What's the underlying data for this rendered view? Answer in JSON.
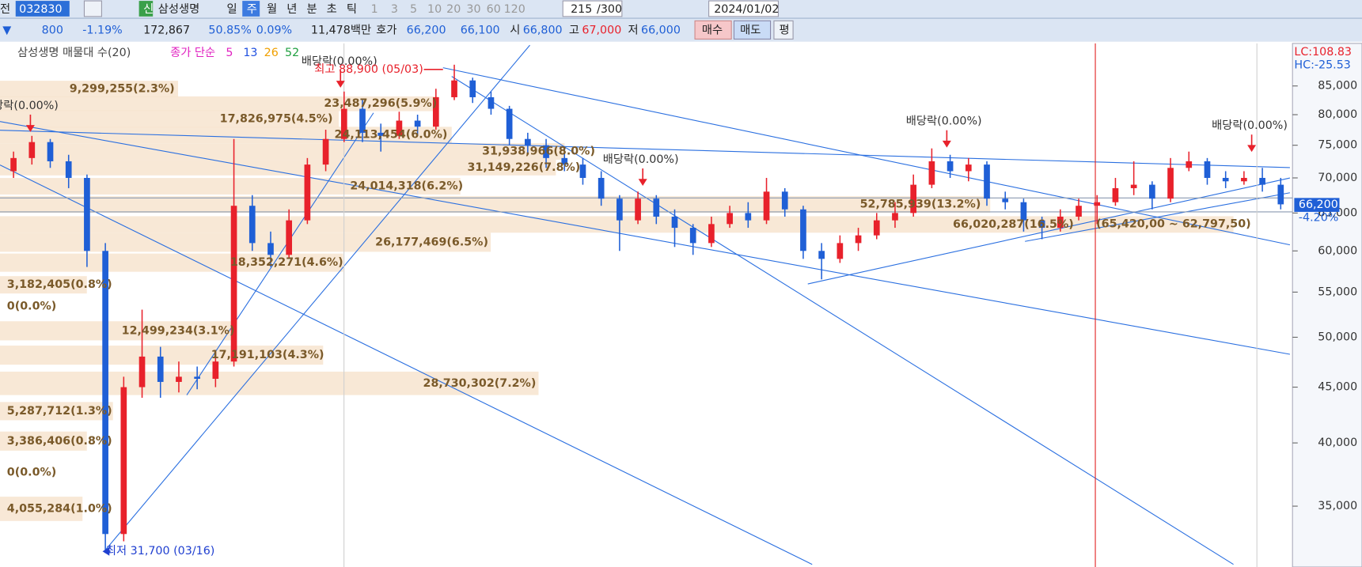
{
  "toolbar": {
    "row1": [
      "전",
      "032830",
      "신",
      "삼성생명",
      "일",
      "주",
      "월",
      "년",
      "분",
      "초",
      "틱",
      "1",
      "3",
      "5",
      "10",
      "20",
      "30",
      "60",
      "120",
      "215",
      "/300",
      "2024/01/02"
    ],
    "row2": [
      "▼",
      "800",
      "-1.19%",
      "172,867",
      "50.85%",
      "0.09%",
      "11,478백만",
      "호가",
      "66,200",
      "66,100",
      "시",
      "66,800",
      "고",
      "67,000",
      "저",
      "66,000",
      "매수",
      "매도",
      "평"
    ]
  },
  "legend": {
    "profile": "삼성생명 매물대 수(20)",
    "ma": "종가 단순",
    "periods": [
      "5",
      "13",
      "26",
      "52"
    ]
  },
  "status": {
    "lc": "LC:108.83",
    "hc": "HC:-25.53",
    "price": "66,200",
    "change": "-4.20%"
  },
  "profile": [
    "9,299,255(2.3%)",
    "23,487,296(5.9%)",
    "17,826,975(4.5%)",
    "24,113,454(6.0%)",
    "31,938,966(8.0%)",
    "31,149,226(7.8%)",
    "24,014,318(6.2%)",
    "52,785,939(13.2%)",
    "66,020,287(16.5%)",
    "26,177,469(6.5%)",
    "18,352,271(4.6%)",
    "3,182,405(0.8%)",
    "0(0.0%)",
    "12,499,234(3.1%)",
    "17,191,103(4.3%)",
    "28,730,302(7.2%)",
    "5,287,712(1.3%)",
    "3,386,406(0.8%)",
    "0(0.0%)",
    "4,055,284(1.0%)"
  ],
  "profile_range": "(65,420,00 ~ 62,797,50)",
  "annotations": {
    "dividend": "배당락(0.00%)",
    "high": "최고 88,900 (05/03)",
    "low": "최저 31,700 (03/16)"
  },
  "chart_data": {
    "type": "candlestick",
    "log": true,
    "ylim": [
      30950,
      92650
    ],
    "yticks": [
      {
        "value": 85000,
        "label": "85,000"
      },
      {
        "value": 80000,
        "label": "80,000"
      },
      {
        "value": 75000,
        "label": "75,000"
      },
      {
        "value": 70000,
        "label": "70,000"
      },
      {
        "value": 65000,
        "label": "65,000"
      },
      {
        "value": 60000,
        "label": "60,000"
      },
      {
        "value": 55000,
        "label": "55,000"
      },
      {
        "value": 50000,
        "label": "50,000"
      },
      {
        "value": 45000,
        "label": "45,000"
      },
      {
        "value": 40000,
        "label": "40,000"
      },
      {
        "value": 35000,
        "label": "35,000"
      }
    ],
    "up_color": "#e8212b",
    "down_color": "#1f5fd6",
    "ohlc": [
      [
        71000,
        74000,
        70000,
        73000
      ],
      [
        73000,
        76500,
        72000,
        75500
      ],
      [
        75500,
        76000,
        71500,
        72500
      ],
      [
        72500,
        73500,
        68500,
        70000
      ],
      [
        70000,
        70500,
        58000,
        60000
      ],
      [
        60000,
        61000,
        31700,
        33000
      ],
      [
        33000,
        46000,
        32500,
        45000
      ],
      [
        45000,
        53000,
        44000,
        48000
      ],
      [
        48000,
        49000,
        44000,
        45500
      ],
      [
        45500,
        47500,
        44500,
        46000
      ],
      [
        46000,
        47000,
        44800,
        45800
      ],
      [
        45800,
        48500,
        45000,
        47500
      ],
      [
        47500,
        76000,
        47000,
        66000
      ],
      [
        66000,
        67500,
        60000,
        61000
      ],
      [
        61000,
        62500,
        58000,
        59500
      ],
      [
        59500,
        65500,
        59000,
        64000
      ],
      [
        64000,
        73000,
        63500,
        72000
      ],
      [
        72000,
        77500,
        71000,
        76000
      ],
      [
        76000,
        84000,
        75500,
        81000
      ],
      [
        81000,
        82500,
        75500,
        77000
      ],
      [
        77000,
        78500,
        74000,
        76500
      ],
      [
        76500,
        80500,
        76000,
        79000
      ],
      [
        79000,
        80000,
        76500,
        78000
      ],
      [
        78000,
        84500,
        77500,
        83000
      ],
      [
        83000,
        88900,
        82500,
        86000
      ],
      [
        86000,
        86500,
        82000,
        83000
      ],
      [
        83000,
        84000,
        80000,
        81000
      ],
      [
        81000,
        81500,
        75000,
        76000
      ],
      [
        76000,
        77000,
        73500,
        75000
      ],
      [
        75000,
        76000,
        71500,
        73000
      ],
      [
        73000,
        74500,
        71000,
        72000
      ],
      [
        72000,
        73000,
        69000,
        70000
      ],
      [
        70000,
        71000,
        66000,
        67000
      ],
      [
        67000,
        67500,
        60000,
        64000
      ],
      [
        64000,
        68000,
        63500,
        67000
      ],
      [
        67000,
        67500,
        63500,
        64500
      ],
      [
        64500,
        65500,
        60500,
        63000
      ],
      [
        63000,
        63500,
        59500,
        61000
      ],
      [
        61000,
        64500,
        60500,
        63500
      ],
      [
        63500,
        66000,
        63000,
        65000
      ],
      [
        65000,
        66500,
        63000,
        64000
      ],
      [
        64000,
        70000,
        63500,
        68000
      ],
      [
        68000,
        68500,
        64500,
        65500
      ],
      [
        65500,
        66000,
        59000,
        60000
      ],
      [
        60000,
        61000,
        56500,
        59000
      ],
      [
        59000,
        62000,
        58500,
        61000
      ],
      [
        61000,
        63000,
        60000,
        62000
      ],
      [
        62000,
        65000,
        61500,
        64000
      ],
      [
        64000,
        66500,
        63000,
        65000
      ],
      [
        65000,
        70500,
        64500,
        69000
      ],
      [
        69000,
        74500,
        68500,
        72500
      ],
      [
        72500,
        73500,
        70000,
        71000
      ],
      [
        71000,
        73000,
        69500,
        72000
      ],
      [
        72000,
        72500,
        66000,
        67000
      ],
      [
        67000,
        68000,
        65500,
        66500
      ],
      [
        66500,
        67000,
        62500,
        64000
      ],
      [
        64000,
        64500,
        61500,
        63000
      ],
      [
        63000,
        65500,
        62500,
        64500
      ],
      [
        64500,
        67000,
        64000,
        66000
      ],
      [
        66000,
        67500,
        63500,
        66500
      ],
      [
        66500,
        70000,
        66000,
        68500
      ],
      [
        68500,
        72500,
        67500,
        69000
      ],
      [
        69000,
        69500,
        65500,
        67000
      ],
      [
        67000,
        73000,
        66500,
        71500
      ],
      [
        71500,
        74000,
        71000,
        72500
      ],
      [
        72500,
        73000,
        69000,
        70000
      ],
      [
        70000,
        71000,
        68500,
        69500
      ],
      [
        69500,
        71000,
        69000,
        70000
      ],
      [
        70000,
        71500,
        68000,
        69000
      ],
      [
        69000,
        70000,
        65500,
        66200
      ]
    ]
  }
}
